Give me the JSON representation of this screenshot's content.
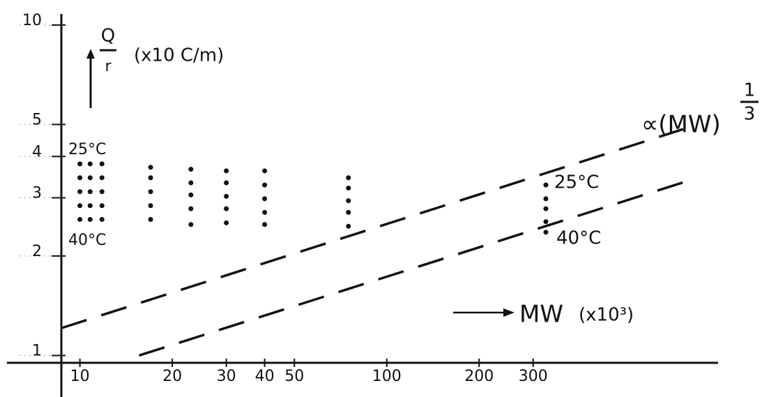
{
  "chart_data": {
    "type": "scatter",
    "log_x": true,
    "log_y": true,
    "xlim": [
      8.7,
      1240
    ],
    "ylim": [
      0.95,
      10.8
    ],
    "xticks": [
      10,
      20,
      30,
      40,
      50,
      100,
      200,
      300
    ],
    "yticks": [
      1,
      2,
      3,
      4,
      5,
      10
    ],
    "y_label_top": "Q",
    "y_label_bottom": "r",
    "y_label_unit": "(x10 C/m)",
    "x_label": "MW",
    "x_label_unit": "(x10³)",
    "slope_label": "∝(MW)",
    "slope_exp_top": "1",
    "slope_exp_bottom": "3",
    "annotations": [
      "25°C",
      "40°C",
      "25°C",
      "40°C"
    ],
    "series": [
      {
        "color": "#111",
        "x": [
          10,
          10,
          10,
          10,
          10,
          10.8,
          10.8,
          10.8,
          10.8,
          10.8,
          11.8,
          11.8,
          11.8,
          11.8,
          11.8,
          17,
          17,
          17,
          17,
          17,
          23,
          23,
          23,
          23,
          23,
          30,
          30,
          30,
          30,
          30,
          40,
          40,
          40,
          40,
          40,
          75,
          75,
          75,
          75,
          75,
          330,
          330,
          330,
          330,
          330
        ],
        "values": [
          3.8,
          3.45,
          3.13,
          2.84,
          2.58,
          3.8,
          3.45,
          3.13,
          2.84,
          2.58,
          3.8,
          3.45,
          3.13,
          2.84,
          2.58,
          3.71,
          3.45,
          3.13,
          2.84,
          2.58,
          3.66,
          3.33,
          3.06,
          2.78,
          2.49,
          3.62,
          3.33,
          3.03,
          2.78,
          2.52,
          3.62,
          3.28,
          2.98,
          2.71,
          2.49,
          3.45,
          3.21,
          2.94,
          2.71,
          2.46,
          3.28,
          2.98,
          2.78,
          2.54,
          2.36
        ]
      }
    ],
    "lines": [
      {
        "x": [
          8.7,
          925
        ],
        "y": [
          1.21,
          4.84
        ]
      },
      {
        "x": [
          15.6,
          925
        ],
        "y": [
          1.0,
          3.34
        ]
      }
    ]
  }
}
